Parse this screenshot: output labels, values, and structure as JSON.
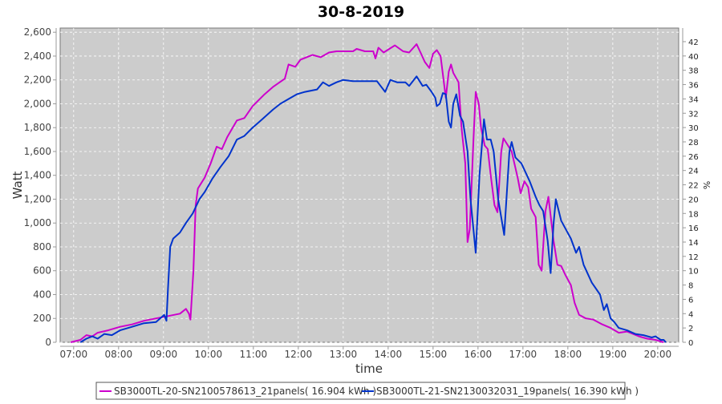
{
  "chart_data": {
    "type": "line",
    "title": "30-8-2019",
    "xlabel": "time",
    "ylabel": "Watt",
    "y2label": "%",
    "xlim": [
      "06:42",
      "20:28"
    ],
    "ylim": [
      0,
      2635
    ],
    "y2lim": [
      0,
      43.9
    ],
    "x_ticks": [
      "07:00",
      "08:00",
      "09:00",
      "10:00",
      "11:00",
      "12:00",
      "13:00",
      "14:00",
      "15:00",
      "16:00",
      "17:00",
      "18:00",
      "19:00",
      "20:00"
    ],
    "y_ticks": [
      0,
      200,
      400,
      600,
      800,
      1000,
      1200,
      1400,
      1600,
      1800,
      2000,
      2200,
      2400,
      2600
    ],
    "y_tick_labels": [
      "0",
      "200",
      "400",
      "600",
      "800",
      "1,000",
      "1,200",
      "1,400",
      "1,600",
      "1,800",
      "2,000",
      "2,200",
      "2,400",
      "2,600"
    ],
    "y2_ticks": [
      0,
      2,
      4,
      6,
      8,
      10,
      12,
      14,
      16,
      18,
      20,
      22,
      24,
      26,
      28,
      30,
      32,
      34,
      36,
      38,
      40,
      42
    ],
    "grid": true,
    "legend_position": "bottom",
    "background_color": "#cccccc",
    "series": [
      {
        "name": "SB3000TL-20-SN2100578613_21panels( 16.904 kWh )",
        "color": "#cc00cc",
        "points": [
          [
            "06:56",
            0
          ],
          [
            "07:09",
            20
          ],
          [
            "07:17",
            60
          ],
          [
            "07:25",
            50
          ],
          [
            "07:32",
            80
          ],
          [
            "07:46",
            100
          ],
          [
            "08:02",
            130
          ],
          [
            "08:18",
            150
          ],
          [
            "08:34",
            180
          ],
          [
            "08:50",
            200
          ],
          [
            "09:06",
            220
          ],
          [
            "09:22",
            240
          ],
          [
            "09:30",
            280
          ],
          [
            "09:34",
            240
          ],
          [
            "09:36",
            190
          ],
          [
            "09:40",
            600
          ],
          [
            "09:43",
            1150
          ],
          [
            "09:46",
            1290
          ],
          [
            "09:55",
            1380
          ],
          [
            "10:03",
            1500
          ],
          [
            "10:11",
            1640
          ],
          [
            "10:18",
            1620
          ],
          [
            "10:25",
            1720
          ],
          [
            "10:38",
            1860
          ],
          [
            "10:48",
            1880
          ],
          [
            "10:59",
            1980
          ],
          [
            "11:15",
            2080
          ],
          [
            "11:26",
            2140
          ],
          [
            "11:42",
            2210
          ],
          [
            "11:47",
            2330
          ],
          [
            "11:56",
            2310
          ],
          [
            "12:03",
            2370
          ],
          [
            "12:19",
            2410
          ],
          [
            "12:30",
            2390
          ],
          [
            "12:41",
            2430
          ],
          [
            "12:51",
            2440
          ],
          [
            "13:13",
            2440
          ],
          [
            "13:18",
            2460
          ],
          [
            "13:29",
            2440
          ],
          [
            "13:40",
            2440
          ],
          [
            "13:43",
            2380
          ],
          [
            "13:47",
            2470
          ],
          [
            "13:54",
            2430
          ],
          [
            "14:09",
            2490
          ],
          [
            "14:20",
            2440
          ],
          [
            "14:28",
            2430
          ],
          [
            "14:38",
            2500
          ],
          [
            "14:44",
            2420
          ],
          [
            "14:49",
            2350
          ],
          [
            "14:55",
            2300
          ],
          [
            "15:00",
            2420
          ],
          [
            "15:05",
            2450
          ],
          [
            "15:10",
            2400
          ],
          [
            "15:13",
            2250
          ],
          [
            "15:17",
            2050
          ],
          [
            "15:21",
            2270
          ],
          [
            "15:24",
            2330
          ],
          [
            "15:27",
            2260
          ],
          [
            "15:34",
            2180
          ],
          [
            "15:38",
            1800
          ],
          [
            "15:43",
            1500
          ],
          [
            "15:46",
            840
          ],
          [
            "15:49",
            950
          ],
          [
            "15:54",
            1700
          ],
          [
            "15:57",
            2100
          ],
          [
            "16:01",
            2000
          ],
          [
            "16:04",
            1800
          ],
          [
            "16:09",
            1650
          ],
          [
            "16:13",
            1620
          ],
          [
            "16:17",
            1400
          ],
          [
            "16:22",
            1150
          ],
          [
            "16:26",
            1090
          ],
          [
            "16:31",
            1600
          ],
          [
            "16:34",
            1710
          ],
          [
            "16:40",
            1650
          ],
          [
            "16:45",
            1600
          ],
          [
            "16:53",
            1380
          ],
          [
            "16:57",
            1250
          ],
          [
            "17:02",
            1350
          ],
          [
            "17:07",
            1300
          ],
          [
            "17:11",
            1120
          ],
          [
            "17:17",
            1050
          ],
          [
            "17:21",
            650
          ],
          [
            "17:25",
            600
          ],
          [
            "17:30",
            1100
          ],
          [
            "17:34",
            1220
          ],
          [
            "17:41",
            850
          ],
          [
            "17:46",
            650
          ],
          [
            "17:51",
            640
          ],
          [
            "17:57",
            560
          ],
          [
            "18:04",
            480
          ],
          [
            "18:09",
            330
          ],
          [
            "18:15",
            230
          ],
          [
            "18:24",
            200
          ],
          [
            "18:34",
            190
          ],
          [
            "18:46",
            150
          ],
          [
            "18:57",
            120
          ],
          [
            "19:08",
            80
          ],
          [
            "19:19",
            90
          ],
          [
            "19:35",
            50
          ],
          [
            "19:46",
            30
          ],
          [
            "19:57",
            20
          ],
          [
            "20:08",
            0
          ]
        ]
      },
      {
        "name": "SB3000TL-21-SN2130032031_19panels( 16.390 kWh )",
        "color": "#0033cc",
        "points": [
          [
            "07:09",
            0
          ],
          [
            "07:17",
            30
          ],
          [
            "07:25",
            50
          ],
          [
            "07:32",
            30
          ],
          [
            "07:41",
            70
          ],
          [
            "07:51",
            60
          ],
          [
            "08:02",
            100
          ],
          [
            "08:18",
            130
          ],
          [
            "08:34",
            160
          ],
          [
            "08:50",
            170
          ],
          [
            "09:01",
            230
          ],
          [
            "09:04",
            180
          ],
          [
            "09:06",
            450
          ],
          [
            "09:09",
            800
          ],
          [
            "09:13",
            870
          ],
          [
            "09:22",
            920
          ],
          [
            "09:30",
            1000
          ],
          [
            "09:39",
            1080
          ],
          [
            "09:48",
            1200
          ],
          [
            "09:55",
            1260
          ],
          [
            "10:05",
            1370
          ],
          [
            "10:16",
            1470
          ],
          [
            "10:27",
            1560
          ],
          [
            "10:38",
            1700
          ],
          [
            "10:48",
            1730
          ],
          [
            "10:59",
            1800
          ],
          [
            "11:10",
            1860
          ],
          [
            "11:26",
            1950
          ],
          [
            "11:36",
            2000
          ],
          [
            "11:47",
            2040
          ],
          [
            "11:58",
            2080
          ],
          [
            "12:09",
            2100
          ],
          [
            "12:25",
            2120
          ],
          [
            "12:33",
            2180
          ],
          [
            "12:41",
            2150
          ],
          [
            "12:51",
            2180
          ],
          [
            "13:00",
            2200
          ],
          [
            "13:13",
            2190
          ],
          [
            "13:45",
            2190
          ],
          [
            "13:56",
            2100
          ],
          [
            "14:03",
            2200
          ],
          [
            "14:12",
            2180
          ],
          [
            "14:23",
            2180
          ],
          [
            "14:28",
            2150
          ],
          [
            "14:38",
            2230
          ],
          [
            "14:46",
            2150
          ],
          [
            "14:51",
            2160
          ],
          [
            "14:58",
            2100
          ],
          [
            "15:03",
            2050
          ],
          [
            "15:05",
            1980
          ],
          [
            "15:09",
            2000
          ],
          [
            "15:13",
            2090
          ],
          [
            "15:17",
            2080
          ],
          [
            "15:21",
            1850
          ],
          [
            "15:24",
            1800
          ],
          [
            "15:27",
            2000
          ],
          [
            "15:31",
            2080
          ],
          [
            "15:36",
            1900
          ],
          [
            "15:40",
            1850
          ],
          [
            "15:46",
            1600
          ],
          [
            "15:50",
            1200
          ],
          [
            "15:57",
            750
          ],
          [
            "16:02",
            1400
          ],
          [
            "16:08",
            1870
          ],
          [
            "16:12",
            1700
          ],
          [
            "16:17",
            1700
          ],
          [
            "16:21",
            1600
          ],
          [
            "16:27",
            1200
          ],
          [
            "16:35",
            900
          ],
          [
            "16:42",
            1600
          ],
          [
            "16:45",
            1680
          ],
          [
            "16:50",
            1550
          ],
          [
            "16:58",
            1500
          ],
          [
            "17:09",
            1350
          ],
          [
            "17:17",
            1220
          ],
          [
            "17:22",
            1150
          ],
          [
            "17:27",
            1100
          ],
          [
            "17:33",
            850
          ],
          [
            "17:37",
            580
          ],
          [
            "17:41",
            1000
          ],
          [
            "17:44",
            1200
          ],
          [
            "17:51",
            1020
          ],
          [
            "18:04",
            870
          ],
          [
            "18:11",
            750
          ],
          [
            "18:15",
            800
          ],
          [
            "18:21",
            650
          ],
          [
            "18:32",
            500
          ],
          [
            "18:43",
            400
          ],
          [
            "18:48",
            270
          ],
          [
            "18:52",
            320
          ],
          [
            "18:57",
            200
          ],
          [
            "19:02",
            170
          ],
          [
            "19:08",
            120
          ],
          [
            "19:19",
            100
          ],
          [
            "19:30",
            70
          ],
          [
            "19:41",
            60
          ],
          [
            "19:52",
            40
          ],
          [
            "19:57",
            50
          ],
          [
            "20:04",
            20
          ],
          [
            "20:08",
            20
          ],
          [
            "20:11",
            0
          ]
        ]
      }
    ]
  }
}
